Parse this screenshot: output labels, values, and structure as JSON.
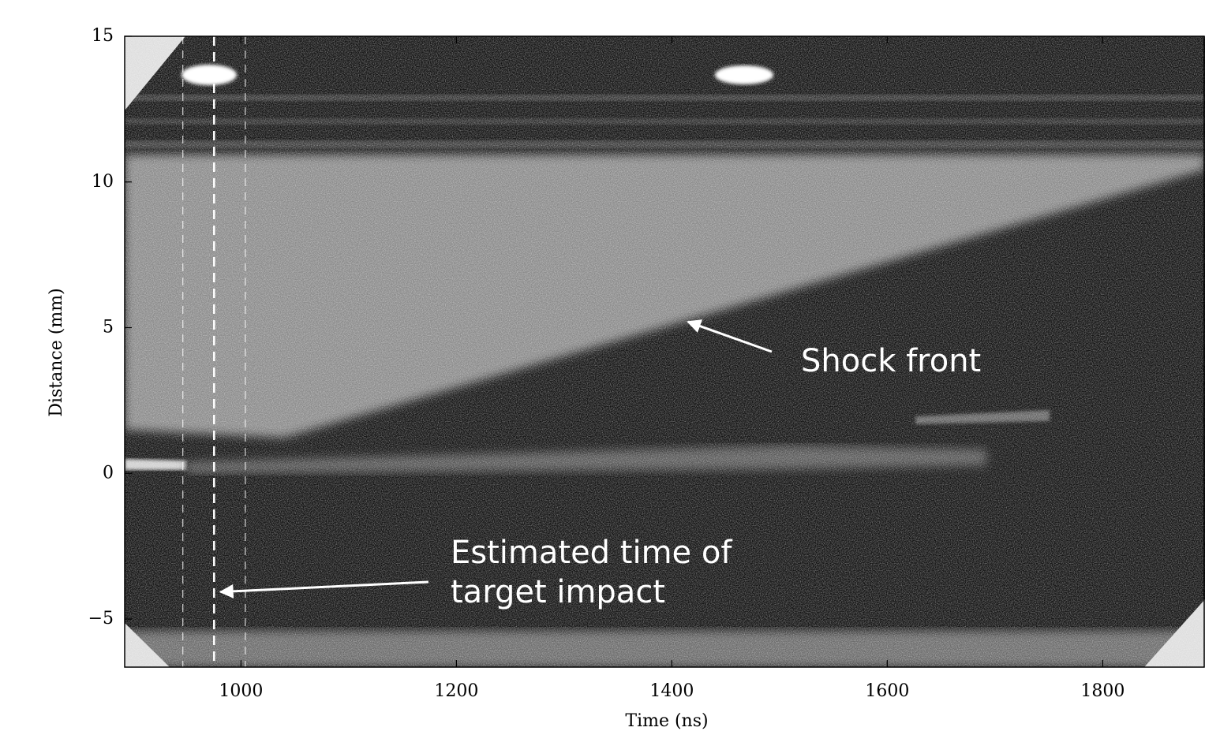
{
  "chart_data": {
    "type": "image",
    "xlabel": "Time (ns)",
    "ylabel": "Distance (mm)",
    "xlim": [
      892,
      1895
    ],
    "ylim": [
      -6.65,
      15
    ],
    "xticks": [
      1000,
      1200,
      1400,
      1600,
      1800
    ],
    "yticks": [
      {
        "value": -5,
        "label": "−5"
      },
      0,
      5,
      10,
      15
    ],
    "vlines": [
      946,
      975,
      1004
    ],
    "annotations": [
      {
        "lines": [
          "Shock front"
        ],
        "xy": [
          1415,
          5.2
        ]
      },
      {
        "lines": [
          "Estimated time of",
          "target impact"
        ],
        "xy": [
          981,
          -4.07
        ]
      }
    ]
  }
}
